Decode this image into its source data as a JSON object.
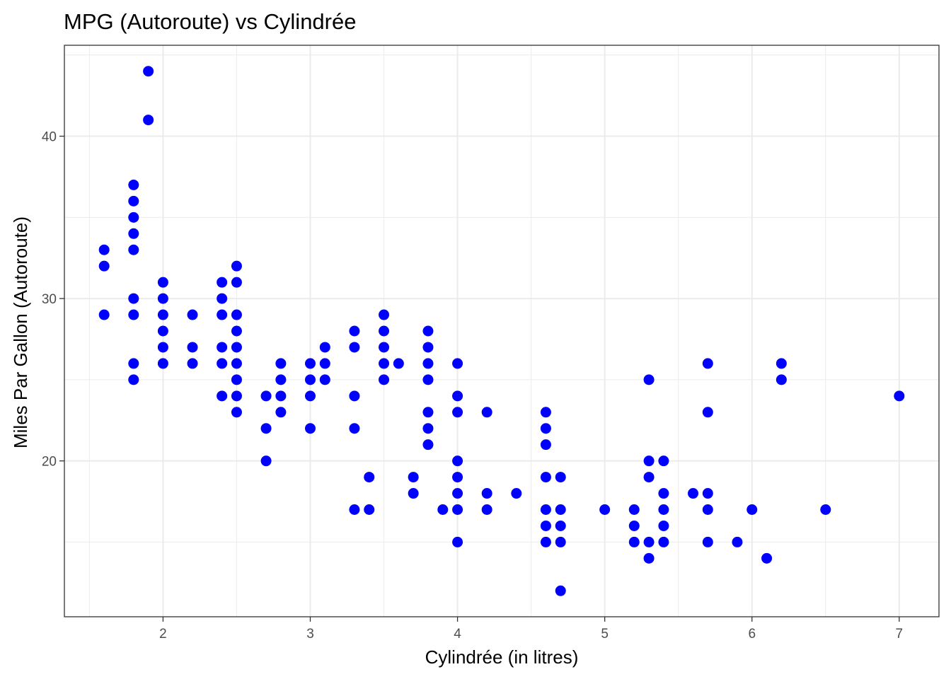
{
  "chart_data": {
    "type": "scatter",
    "title": "MPG (Autoroute) vs Cylindrée",
    "xlabel": "Cylindrée (in litres)",
    "ylabel": "Miles Par Gallon (Autoroute)",
    "xlim": [
      1.33,
      7.27
    ],
    "ylim": [
      10.4,
      45.6
    ],
    "x_ticks": [
      2,
      3,
      4,
      5,
      6,
      7
    ],
    "y_ticks": [
      20,
      30,
      40
    ],
    "grid": true,
    "point_color": "#0000ff",
    "points": [
      [
        1.6,
        33
      ],
      [
        1.6,
        32
      ],
      [
        1.6,
        29
      ],
      [
        1.8,
        37
      ],
      [
        1.8,
        36
      ],
      [
        1.8,
        35
      ],
      [
        1.8,
        34
      ],
      [
        1.8,
        33
      ],
      [
        1.8,
        30
      ],
      [
        1.8,
        29
      ],
      [
        1.8,
        26
      ],
      [
        1.8,
        25
      ],
      [
        1.9,
        44
      ],
      [
        1.9,
        41
      ],
      [
        2.0,
        31
      ],
      [
        2.0,
        30
      ],
      [
        2.0,
        29
      ],
      [
        2.0,
        28
      ],
      [
        2.0,
        27
      ],
      [
        2.0,
        26
      ],
      [
        2.2,
        29
      ],
      [
        2.2,
        27
      ],
      [
        2.2,
        26
      ],
      [
        2.4,
        31
      ],
      [
        2.4,
        30
      ],
      [
        2.4,
        29
      ],
      [
        2.4,
        27
      ],
      [
        2.4,
        26
      ],
      [
        2.4,
        24
      ],
      [
        2.5,
        32
      ],
      [
        2.5,
        31
      ],
      [
        2.5,
        29
      ],
      [
        2.5,
        28
      ],
      [
        2.5,
        27
      ],
      [
        2.5,
        26
      ],
      [
        2.5,
        25
      ],
      [
        2.5,
        24
      ],
      [
        2.5,
        23
      ],
      [
        2.7,
        24
      ],
      [
        2.7,
        22
      ],
      [
        2.7,
        20
      ],
      [
        2.8,
        26
      ],
      [
        2.8,
        25
      ],
      [
        2.8,
        24
      ],
      [
        2.8,
        23
      ],
      [
        3.0,
        26
      ],
      [
        3.0,
        25
      ],
      [
        3.0,
        24
      ],
      [
        3.0,
        22
      ],
      [
        3.1,
        27
      ],
      [
        3.1,
        26
      ],
      [
        3.1,
        25
      ],
      [
        3.3,
        28
      ],
      [
        3.3,
        27
      ],
      [
        3.3,
        24
      ],
      [
        3.3,
        22
      ],
      [
        3.3,
        17
      ],
      [
        3.4,
        19
      ],
      [
        3.4,
        17
      ],
      [
        3.5,
        29
      ],
      [
        3.5,
        28
      ],
      [
        3.5,
        27
      ],
      [
        3.5,
        26
      ],
      [
        3.5,
        25
      ],
      [
        3.6,
        26
      ],
      [
        3.7,
        19
      ],
      [
        3.7,
        18
      ],
      [
        3.8,
        28
      ],
      [
        3.8,
        27
      ],
      [
        3.8,
        26
      ],
      [
        3.8,
        25
      ],
      [
        3.8,
        23
      ],
      [
        3.8,
        22
      ],
      [
        3.8,
        21
      ],
      [
        3.9,
        17
      ],
      [
        4.0,
        26
      ],
      [
        4.0,
        24
      ],
      [
        4.0,
        23
      ],
      [
        4.0,
        20
      ],
      [
        4.0,
        19
      ],
      [
        4.0,
        18
      ],
      [
        4.0,
        17
      ],
      [
        4.0,
        15
      ],
      [
        4.2,
        23
      ],
      [
        4.2,
        18
      ],
      [
        4.2,
        17
      ],
      [
        4.4,
        18
      ],
      [
        4.6,
        23
      ],
      [
        4.6,
        22
      ],
      [
        4.6,
        21
      ],
      [
        4.6,
        19
      ],
      [
        4.6,
        17
      ],
      [
        4.6,
        16
      ],
      [
        4.6,
        15
      ],
      [
        4.7,
        19
      ],
      [
        4.7,
        17
      ],
      [
        4.7,
        16
      ],
      [
        4.7,
        15
      ],
      [
        4.7,
        12
      ],
      [
        5.0,
        17
      ],
      [
        5.2,
        17
      ],
      [
        5.2,
        16
      ],
      [
        5.2,
        15
      ],
      [
        5.3,
        25
      ],
      [
        5.3,
        20
      ],
      [
        5.3,
        19
      ],
      [
        5.3,
        15
      ],
      [
        5.3,
        14
      ],
      [
        5.4,
        20
      ],
      [
        5.4,
        18
      ],
      [
        5.4,
        17
      ],
      [
        5.4,
        16
      ],
      [
        5.4,
        15
      ],
      [
        5.6,
        18
      ],
      [
        5.7,
        26
      ],
      [
        5.7,
        23
      ],
      [
        5.7,
        18
      ],
      [
        5.7,
        17
      ],
      [
        5.7,
        15
      ],
      [
        5.9,
        15
      ],
      [
        6.0,
        17
      ],
      [
        6.1,
        14
      ],
      [
        6.2,
        26
      ],
      [
        6.2,
        25
      ],
      [
        6.5,
        17
      ],
      [
        7.0,
        24
      ]
    ]
  }
}
